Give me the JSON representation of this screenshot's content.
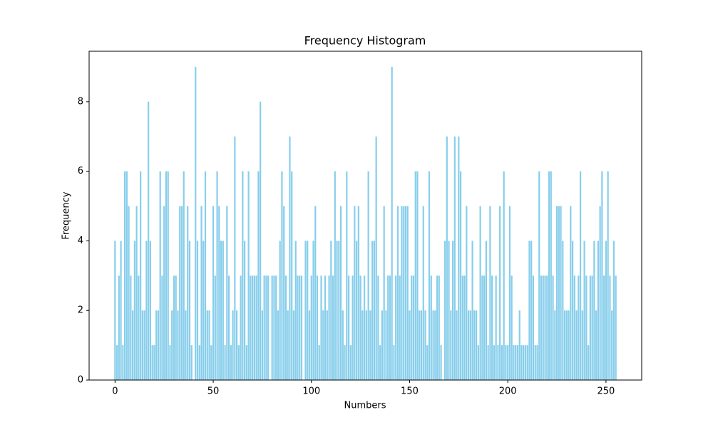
{
  "chart_data": {
    "type": "bar",
    "title": "Frequency Histogram",
    "x_label": "Numbers",
    "y_label": "Frequency",
    "x": [
      0,
      1,
      2,
      3,
      4,
      5,
      6,
      7,
      8,
      9,
      10,
      11,
      12,
      13,
      14,
      15,
      16,
      17,
      18,
      19,
      20,
      21,
      22,
      23,
      24,
      25,
      26,
      27,
      28,
      29,
      30,
      31,
      32,
      33,
      34,
      35,
      36,
      37,
      38,
      39,
      40,
      41,
      42,
      43,
      44,
      45,
      46,
      47,
      48,
      49,
      50,
      51,
      52,
      53,
      54,
      55,
      56,
      57,
      58,
      59,
      60,
      61,
      62,
      63,
      64,
      65,
      66,
      67,
      68,
      69,
      70,
      71,
      72,
      73,
      74,
      75,
      76,
      77,
      78,
      79,
      80,
      81,
      82,
      83,
      84,
      85,
      86,
      87,
      88,
      89,
      90,
      91,
      92,
      93,
      94,
      95,
      96,
      97,
      98,
      99,
      100,
      101,
      102,
      103,
      104,
      105,
      106,
      107,
      108,
      109,
      110,
      111,
      112,
      113,
      114,
      115,
      116,
      117,
      118,
      119,
      120,
      121,
      122,
      123,
      124,
      125,
      126,
      127,
      128,
      129,
      130,
      131,
      132,
      133,
      134,
      135,
      136,
      137,
      138,
      139,
      140,
      141,
      142,
      143,
      144,
      145,
      146,
      147,
      148,
      149,
      150,
      151,
      152,
      153,
      154,
      155,
      156,
      157,
      158,
      159,
      160,
      161,
      162,
      163,
      164,
      165,
      166,
      167,
      168,
      169,
      170,
      171,
      172,
      173,
      174,
      175,
      176,
      177,
      178,
      179,
      180,
      181,
      182,
      183,
      184,
      185,
      186,
      187,
      188,
      189,
      190,
      191,
      192,
      193,
      194,
      195,
      196,
      197,
      198,
      199,
      200,
      201,
      202,
      203,
      204,
      205,
      206,
      207,
      208,
      209,
      210,
      211,
      212,
      213,
      214,
      215,
      216,
      217,
      218,
      219,
      220,
      221,
      222,
      223,
      224,
      225,
      226,
      227,
      228,
      229,
      230,
      231,
      232,
      233,
      234,
      235,
      236,
      237,
      238,
      239,
      240,
      241,
      242,
      243,
      244,
      245,
      246,
      247,
      248,
      249,
      250,
      251,
      252,
      253,
      254,
      255
    ],
    "values": [
      4,
      1,
      3,
      4,
      1,
      6,
      6,
      5,
      3,
      2,
      4,
      5,
      3,
      6,
      2,
      2,
      4,
      8,
      4,
      1,
      1,
      2,
      2,
      6,
      3,
      5,
      6,
      6,
      1,
      2,
      3,
      3,
      2,
      5,
      5,
      6,
      2,
      5,
      4,
      1,
      0,
      9,
      4,
      1,
      5,
      4,
      6,
      2,
      2,
      1,
      5,
      3,
      6,
      5,
      4,
      4,
      1,
      5,
      3,
      1,
      2,
      7,
      2,
      1,
      3,
      6,
      4,
      1,
      6,
      3,
      3,
      3,
      3,
      6,
      8,
      2,
      3,
      3,
      3,
      0,
      3,
      3,
      3,
      2,
      4,
      6,
      5,
      3,
      2,
      7,
      6,
      2,
      4,
      3,
      3,
      3,
      0,
      4,
      4,
      2,
      3,
      4,
      5,
      3,
      1,
      3,
      2,
      3,
      2,
      3,
      4,
      3,
      6,
      4,
      4,
      5,
      2,
      1,
      6,
      3,
      1,
      3,
      5,
      4,
      5,
      3,
      2,
      3,
      2,
      6,
      2,
      4,
      4,
      7,
      3,
      1,
      2,
      5,
      2,
      3,
      3,
      9,
      1,
      3,
      5,
      3,
      5,
      5,
      5,
      5,
      2,
      3,
      3,
      6,
      6,
      2,
      2,
      5,
      2,
      1,
      6,
      3,
      2,
      2,
      3,
      3,
      1,
      0,
      4,
      7,
      4,
      2,
      4,
      7,
      2,
      7,
      6,
      3,
      3,
      5,
      2,
      2,
      4,
      2,
      2,
      1,
      5,
      3,
      3,
      4,
      1,
      5,
      3,
      1,
      3,
      1,
      5,
      1,
      6,
      1,
      1,
      5,
      3,
      1,
      1,
      1,
      2,
      1,
      1,
      1,
      1,
      4,
      4,
      3,
      1,
      1,
      6,
      3,
      3,
      3,
      3,
      6,
      6,
      3,
      2,
      5,
      5,
      5,
      4,
      2,
      2,
      2,
      5,
      4,
      3,
      2,
      3,
      6,
      2,
      4,
      3,
      1,
      3,
      3,
      4,
      2,
      4,
      5,
      6,
      3,
      4,
      6,
      3,
      2,
      4,
      3
    ],
    "color": "#87ceeb",
    "xlim": [
      -13.19,
      268.19
    ],
    "xticks": [
      0,
      50,
      100,
      150,
      200,
      250
    ],
    "ylim": [
      0,
      9.45
    ],
    "yticks": [
      0,
      2,
      4,
      6,
      8
    ]
  }
}
